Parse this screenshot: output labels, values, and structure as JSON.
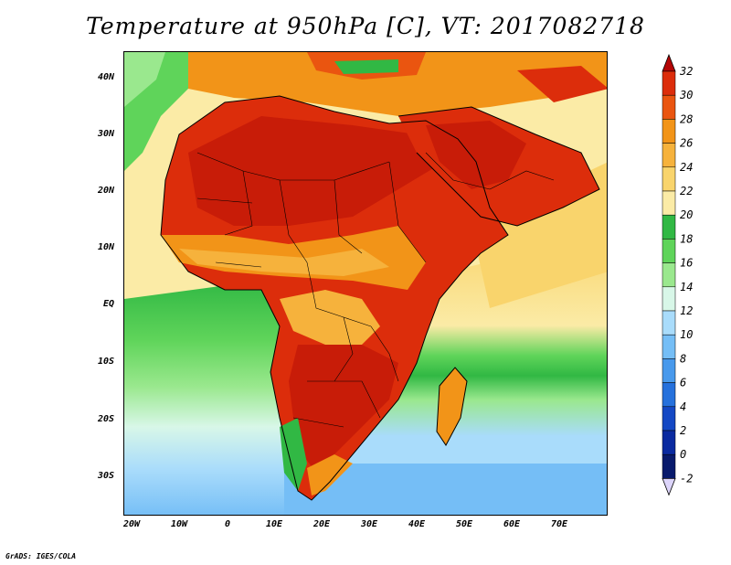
{
  "title": "Temperature at 950hPa [C], VT: 2017082718",
  "credit": "GrADS: IGES/COLA",
  "lat_ticks": [
    "40N",
    "30N",
    "20N",
    "10N",
    "EQ",
    "10S",
    "20S",
    "30S"
  ],
  "lon_ticks": [
    "20W",
    "10W",
    "0",
    "10E",
    "20E",
    "30E",
    "40E",
    "50E",
    "60E",
    "70E"
  ],
  "colorbar": {
    "labels": [
      "32",
      "30",
      "28",
      "26",
      "24",
      "22",
      "20",
      "18",
      "16",
      "14",
      "12",
      "10",
      "8",
      "6",
      "4",
      "2",
      "0",
      "-2"
    ],
    "colors": [
      "#a00000",
      "#dc2d0b",
      "#ea5510",
      "#f29418",
      "#f6b23c",
      "#f9d46c",
      "#fbeba6",
      "#31b844",
      "#5fd45a",
      "#9ae88e",
      "#d8f7e8",
      "#a9dcfb",
      "#75bef6",
      "#4899ec",
      "#2671dc",
      "#1448c4",
      "#0a2aa0",
      "#081a6c",
      "#dad6f8"
    ],
    "max_color": "#b40505",
    "min_color": "#dcd4fa"
  },
  "map": {
    "ocean_south_colors": [
      "#31b844",
      "#5fd45a",
      "#9ae88e",
      "#d8f7e8",
      "#a9dcfb",
      "#75bef6"
    ],
    "land_hot": "#dc2d0b",
    "land_very_hot": "#c81c08",
    "land_warm": "#f29418",
    "ocean_warm": "#f9d46c",
    "ocean_green": "#31b844",
    "coast_color": "#000000"
  }
}
